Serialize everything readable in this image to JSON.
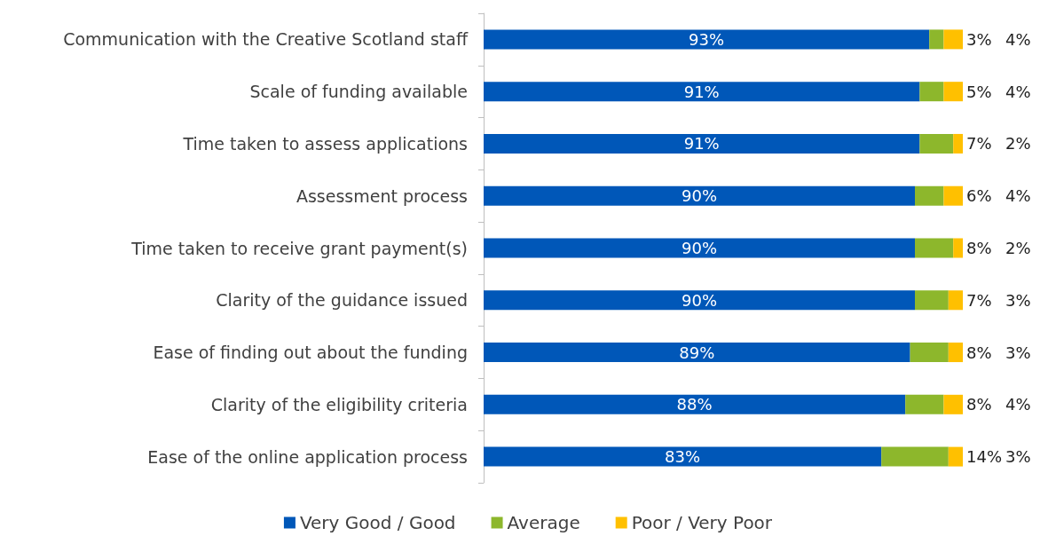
{
  "chart_data": {
    "type": "bar",
    "orientation": "horizontal",
    "stacked": true,
    "legend": "bottom",
    "grid": false,
    "categories": [
      "Communication with the Creative Scotland staff",
      "Scale of funding available",
      "Time taken to assess applications",
      "Assessment process",
      "Time taken to receive grant payment(s)",
      "Clarity of the guidance issued",
      "Ease of finding out about the funding",
      "Clarity of the eligibility criteria",
      "Ease of the online application process"
    ],
    "xlim": [
      0,
      100
    ],
    "series": [
      {
        "name": "Very Good / Good",
        "color": "#0057b8",
        "values": [
          93,
          91,
          91,
          90,
          90,
          90,
          89,
          88,
          83
        ],
        "value_labels": [
          "93%",
          "91%",
          "91%",
          "90%",
          "90%",
          "90%",
          "89%",
          "88%",
          "83%"
        ]
      },
      {
        "name": "Average",
        "color": "#8db72c",
        "values": [
          3,
          5,
          7,
          6,
          8,
          7,
          8,
          8,
          14
        ],
        "value_labels": [
          "3%",
          "5%",
          "7%",
          "6%",
          "8%",
          "7%",
          "8%",
          "8%",
          "14%"
        ]
      },
      {
        "name": "Poor / Very Poor",
        "color": "#ffc000",
        "values": [
          4,
          4,
          2,
          4,
          2,
          3,
          3,
          4,
          3
        ],
        "value_labels": [
          "4%",
          "4%",
          "2%",
          "4%",
          "2%",
          "3%",
          "3%",
          "4%",
          "3%"
        ]
      }
    ]
  }
}
